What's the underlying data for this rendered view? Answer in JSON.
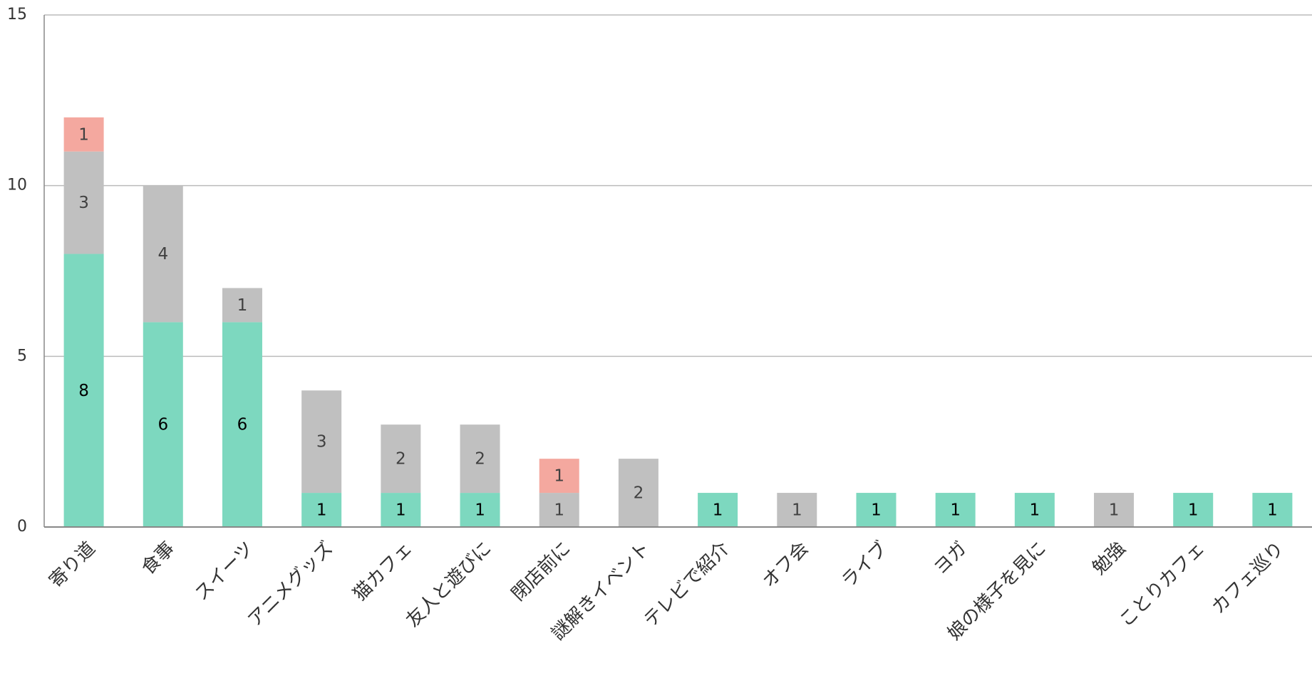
{
  "chart_data": {
    "type": "stacked_bar",
    "categories": [
      "寄り道",
      "食事",
      "スイーツ",
      "アニメグッズ",
      "猫カフェ",
      "友人と遊びに",
      "閉店前に",
      "謎解きイベント",
      "テレビで紹介",
      "オフ会",
      "ライブ",
      "ヨガ",
      "娘の様子を見に",
      "勉強",
      "ことりカフェ",
      "カフェ巡り"
    ],
    "series": [
      {
        "color": "#7dd8bf",
        "label_color": "#000000",
        "values": [
          8,
          6,
          6,
          1,
          1,
          1,
          null,
          null,
          1,
          null,
          1,
          1,
          1,
          null,
          1,
          1
        ]
      },
      {
        "color": "#c0c0c0",
        "label_color": "#404040",
        "values": [
          3,
          4,
          1,
          3,
          2,
          2,
          1,
          2,
          null,
          1,
          null,
          null,
          null,
          1,
          null,
          null
        ]
      },
      {
        "color": "#f4a89f",
        "label_color": "#404040",
        "values": [
          1,
          null,
          null,
          null,
          null,
          null,
          1,
          null,
          null,
          null,
          null,
          null,
          null,
          null,
          null,
          null
        ]
      }
    ],
    "ylim": [
      0,
      15
    ],
    "yticks": [
      0,
      5,
      10,
      15
    ],
    "grid": true
  }
}
